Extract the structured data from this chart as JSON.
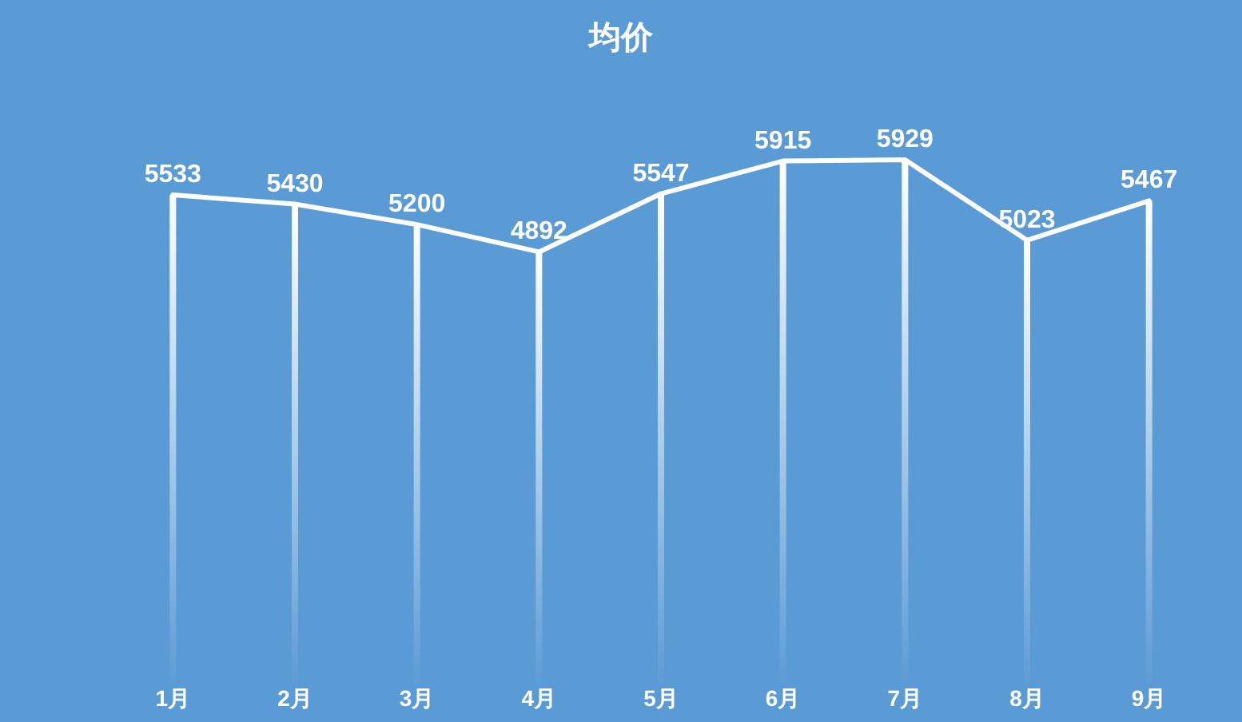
{
  "chart_data": {
    "type": "bar",
    "title": "均价",
    "categories": [
      "1月",
      "2月",
      "3月",
      "4月",
      "5月",
      "6月",
      "7月",
      "8月",
      "9月"
    ],
    "series": [
      {
        "type": "line",
        "color": "#ffffff",
        "values": [
          5533,
          5430,
          5200,
          4892,
          5547,
          5915,
          5929,
          5023,
          5467
        ]
      },
      {
        "type": "bar",
        "color": "#ffffff",
        "values": [
          5533,
          5430,
          5200,
          4892,
          5547,
          5915,
          5929,
          5023,
          5467
        ],
        "value_labels": [
          "5533",
          "5430",
          "5200",
          "4892",
          "5547",
          "5915",
          "5929",
          "5023",
          "5467"
        ]
      }
    ],
    "tick_labels": "x"
  }
}
